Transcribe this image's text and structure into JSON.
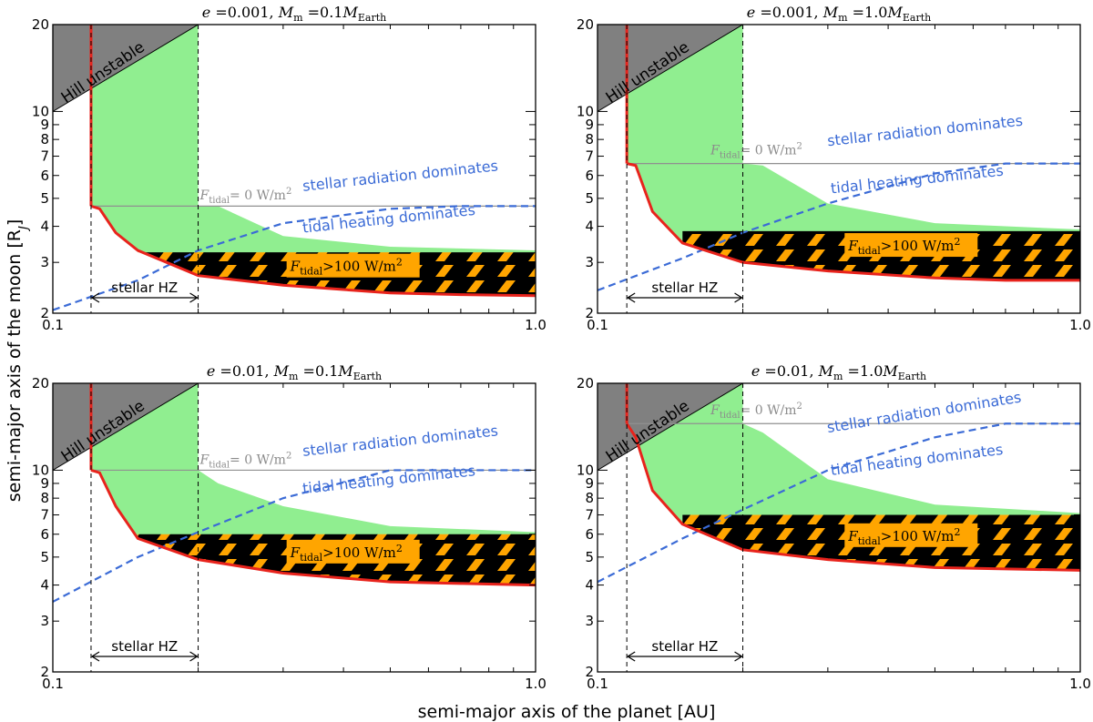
{
  "figure": {
    "xlabel": "semi-major axis of the planet [AU]",
    "ylabel": "semi-major axis of the moon [R",
    "ylabel_sub": "J",
    "ylabel_end": "]"
  },
  "labels": {
    "hill": "Hill unstable",
    "stellar_dominates": "stellar radiation dominates",
    "tidal_dominates": "tidal heating dominates",
    "hz": "stellar HZ",
    "ftidal_zero_value": "= 0 W/m",
    "ftidal_big_value": ">100 W/m",
    "ftidal_symbol": "F",
    "ftidal_sub": "tidal",
    "sup2": "2",
    "e_symbol": "e",
    "e_eq": "=",
    "M_symbol": "M",
    "M_sub": "m",
    "M_eq": "=",
    "M_unit_sub": "Earth"
  },
  "chart_data": [
    {
      "type": "area",
      "title": {
        "e": "0.001",
        "mass": "0.1M"
      },
      "xlim": [
        0.1,
        1.0
      ],
      "ylim": [
        2,
        20
      ],
      "xscale": "log",
      "yscale": "log",
      "xticks": [
        "0.1",
        "1.0"
      ],
      "yticks": [
        "2",
        "3",
        "4",
        "5",
        "6",
        "7",
        "8",
        "9",
        "10",
        "20"
      ],
      "a_min": 0.12,
      "hz": [
        0.12,
        0.2
      ],
      "stability_limit": {
        "x": [
          0.12,
          0.125,
          0.135,
          0.15,
          0.2,
          0.3,
          0.5,
          0.7,
          1.0
        ],
        "y": [
          4.7,
          4.6,
          3.8,
          3.3,
          2.7,
          2.5,
          2.35,
          2.32,
          2.3
        ]
      },
      "ftidal_zero": 4.7,
      "ftidal_100": 3.25,
      "green_upper": {
        "x": [
          0.2,
          0.22,
          0.3,
          0.5,
          1.0
        ],
        "y": [
          4.7,
          4.7,
          3.7,
          3.4,
          3.3
        ]
      },
      "crossover": {
        "x": [
          0.1,
          0.15,
          0.2,
          0.3,
          0.5,
          0.7,
          1.0
        ],
        "y": [
          2.05,
          2.6,
          3.3,
          4.1,
          4.6,
          4.7,
          4.7
        ]
      },
      "annot": {
        "stellar": {
          "x": 0.33,
          "y": 5.3,
          "rot": -6
        },
        "tidal": {
          "x": 0.33,
          "y": 3.8,
          "rot": -6
        },
        "ftidal_zero": {
          "x": 0.2,
          "y": 4.95
        },
        "box": {
          "x": 0.305,
          "y": 2.8
        }
      }
    },
    {
      "type": "area",
      "title": {
        "e": "0.001",
        "mass": "1.0M"
      },
      "xlim": [
        0.1,
        1.0
      ],
      "ylim": [
        2,
        20
      ],
      "xscale": "log",
      "yscale": "log",
      "xticks": [
        "0.1",
        "1.0"
      ],
      "yticks": [
        "2",
        "3",
        "4",
        "5",
        "6",
        "7",
        "8",
        "9",
        "10",
        "20"
      ],
      "a_min": 0.115,
      "hz": [
        0.115,
        0.2
      ],
      "stability_limit": {
        "x": [
          0.115,
          0.12,
          0.13,
          0.15,
          0.2,
          0.3,
          0.5,
          0.7,
          1.0
        ],
        "y": [
          6.6,
          6.5,
          4.5,
          3.5,
          3.0,
          2.8,
          2.65,
          2.6,
          2.6
        ]
      },
      "ftidal_zero": 6.6,
      "ftidal_100": 3.85,
      "green_upper": {
        "x": [
          0.2,
          0.22,
          0.3,
          0.5,
          1.0
        ],
        "y": [
          6.6,
          6.5,
          4.8,
          4.1,
          3.9
        ]
      },
      "crossover": {
        "x": [
          0.1,
          0.15,
          0.2,
          0.3,
          0.5,
          0.7,
          1.0
        ],
        "y": [
          2.4,
          3.1,
          3.8,
          4.8,
          6.1,
          6.6,
          6.6
        ]
      },
      "annot": {
        "stellar": {
          "x": 0.3,
          "y": 7.6,
          "rot": -6
        },
        "tidal": {
          "x": 0.305,
          "y": 5.2,
          "rot": -6
        },
        "ftidal_zero": {
          "x": 0.17,
          "y": 7.1
        },
        "box": {
          "x": 0.325,
          "y": 3.3
        }
      }
    },
    {
      "type": "area",
      "title": {
        "e": "0.01",
        "mass": "0.1M"
      },
      "xlim": [
        0.1,
        1.0
      ],
      "ylim": [
        2,
        20
      ],
      "xscale": "log",
      "yscale": "log",
      "xticks": [
        "0.1",
        "1.0"
      ],
      "yticks": [
        "2",
        "3",
        "4",
        "5",
        "6",
        "7",
        "8",
        "9",
        "10",
        "20"
      ],
      "a_min": 0.12,
      "hz": [
        0.12,
        0.2
      ],
      "stability_limit": {
        "x": [
          0.12,
          0.125,
          0.135,
          0.15,
          0.2,
          0.3,
          0.5,
          0.7,
          1.0
        ],
        "y": [
          10.0,
          9.8,
          7.5,
          5.8,
          4.9,
          4.4,
          4.1,
          4.05,
          4.0
        ]
      },
      "ftidal_zero": 10.0,
      "ftidal_100": 6.0,
      "green_upper": {
        "x": [
          0.2,
          0.22,
          0.3,
          0.5,
          1.0
        ],
        "y": [
          10.0,
          9.0,
          7.5,
          6.4,
          6.1
        ]
      },
      "crossover": {
        "x": [
          0.1,
          0.15,
          0.2,
          0.3,
          0.5,
          0.7,
          1.0
        ],
        "y": [
          3.5,
          5.0,
          6.1,
          8.0,
          10.0,
          10.0,
          10.0
        ]
      },
      "annot": {
        "stellar": {
          "x": 0.33,
          "y": 11.2,
          "rot": -6
        },
        "tidal": {
          "x": 0.33,
          "y": 8.3,
          "rot": -6
        },
        "ftidal_zero": {
          "x": 0.2,
          "y": 10.5
        },
        "box": {
          "x": 0.305,
          "y": 5.0
        }
      }
    },
    {
      "type": "area",
      "title": {
        "e": "0.01",
        "mass": "1.0M"
      },
      "xlim": [
        0.1,
        1.0
      ],
      "ylim": [
        2,
        20
      ],
      "xscale": "log",
      "yscale": "log",
      "xticks": [
        "0.1",
        "1.0"
      ],
      "yticks": [
        "2",
        "3",
        "4",
        "5",
        "6",
        "7",
        "8",
        "9",
        "10",
        "20"
      ],
      "a_min": 0.115,
      "hz": [
        0.115,
        0.2
      ],
      "stability_limit": {
        "x": [
          0.115,
          0.12,
          0.13,
          0.15,
          0.2,
          0.3,
          0.5,
          0.7,
          1.0
        ],
        "y": [
          14.5,
          13.0,
          8.5,
          6.5,
          5.3,
          4.9,
          4.6,
          4.55,
          4.5
        ]
      },
      "ftidal_zero": 14.5,
      "ftidal_100": 7.0,
      "green_upper": {
        "x": [
          0.2,
          0.22,
          0.3,
          0.5,
          1.0
        ],
        "y": [
          14.5,
          13.5,
          9.3,
          7.6,
          7.1
        ]
      },
      "crossover": {
        "x": [
          0.1,
          0.15,
          0.2,
          0.3,
          0.5,
          0.7,
          1.0
        ],
        "y": [
          4.1,
          5.8,
          7.3,
          10.0,
          13.0,
          14.5,
          14.5
        ]
      },
      "annot": {
        "stellar": {
          "x": 0.3,
          "y": 13.5,
          "rot": -9
        },
        "tidal": {
          "x": 0.305,
          "y": 9.6,
          "rot": -7
        },
        "ftidal_zero": {
          "x": 0.17,
          "y": 15.6
        },
        "box": {
          "x": 0.325,
          "y": 5.7
        }
      }
    }
  ]
}
